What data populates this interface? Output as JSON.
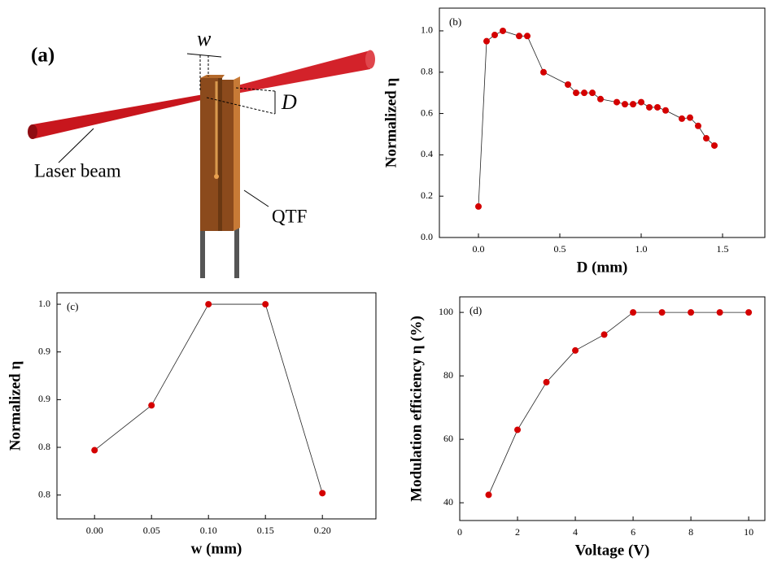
{
  "diagram": {
    "panel_label": "(a)",
    "w_label": "w",
    "d_label": "D",
    "beam_label": "Laser beam",
    "qtf_label": "QTF"
  },
  "chart_data": [
    {
      "type": "line",
      "panel_label": "(b)",
      "xlabel": "D (mm)",
      "ylabel": "Normalized η",
      "x": [
        0,
        0.05,
        0.1,
        0.15,
        0.25,
        0.3,
        0.4,
        0.55,
        0.6,
        0.65,
        0.7,
        0.75,
        0.85,
        0.9,
        0.95,
        1.0,
        1.05,
        1.1,
        1.15,
        1.25,
        1.3,
        1.35,
        1.4,
        1.45
      ],
      "values": [
        0.15,
        0.95,
        0.98,
        1.0,
        0.975,
        0.975,
        0.8,
        0.74,
        0.7,
        0.7,
        0.7,
        0.67,
        0.655,
        0.645,
        0.645,
        0.655,
        0.63,
        0.63,
        0.615,
        0.575,
        0.58,
        0.54,
        0.48,
        0.445
      ],
      "color": "#d40000",
      "line_color": "#222222",
      "xlim": [
        -0.24,
        1.76
      ],
      "ylim": [
        0,
        1.11
      ],
      "xticks": [
        {
          "value": 0,
          "label": "0.0"
        },
        {
          "value": 0.5,
          "label": "0.5"
        },
        {
          "value": 1,
          "label": "1.0"
        },
        {
          "value": 1.5,
          "label": "1.5"
        }
      ],
      "yticks": [
        {
          "value": 0,
          "label": "0.0"
        },
        {
          "value": 0.2,
          "label": "0.2"
        },
        {
          "value": 0.4,
          "label": "0.4"
        },
        {
          "value": 0.6,
          "label": "0.6"
        },
        {
          "value": 0.8,
          "label": "0.8"
        },
        {
          "value": 1,
          "label": "1.0"
        }
      ]
    },
    {
      "type": "line",
      "panel_label": "(c)",
      "xlabel": "w (mm)",
      "ylabel": "Normalized η",
      "x": [
        0,
        0.05,
        0.1,
        0.15,
        0.2
      ],
      "values": [
        0.847,
        0.894,
        1.0,
        1.0,
        0.802
      ],
      "color": "#d40000",
      "line_color": "#222222",
      "xlim": [
        -0.033,
        0.247
      ],
      "ylim": [
        0.775,
        1.012
      ],
      "xticks": [
        {
          "value": 0,
          "label": "0.00"
        },
        0.05,
        {
          "value": 0.1,
          "label": "0.10"
        },
        0.15,
        {
          "value": 0.2,
          "label": "0.20"
        }
      ],
      "yticks": [
        0.8,
        {
          "value": 0.85,
          "label": "0.8"
        },
        0.9,
        {
          "value": 0.95,
          "label": "0.9"
        },
        {
          "value": 1,
          "label": "1.0"
        }
      ]
    },
    {
      "type": "line",
      "panel_label": "(d)",
      "xlabel": "Voltage (V)",
      "ylabel": "Modulation efficiency η (%)",
      "x": [
        1,
        2,
        3,
        4,
        5,
        6,
        7,
        8,
        9,
        10
      ],
      "values": [
        42.5,
        63,
        78,
        88,
        93,
        100,
        100,
        100,
        100,
        100
      ],
      "color": "#d40000",
      "line_color": "#222222",
      "xlim": [
        0,
        10.56
      ],
      "ylim": [
        34.4,
        104.9
      ],
      "xticks": [
        0,
        2,
        4,
        6,
        8,
        10
      ],
      "yticks": [
        40,
        60,
        80,
        100
      ]
    }
  ]
}
